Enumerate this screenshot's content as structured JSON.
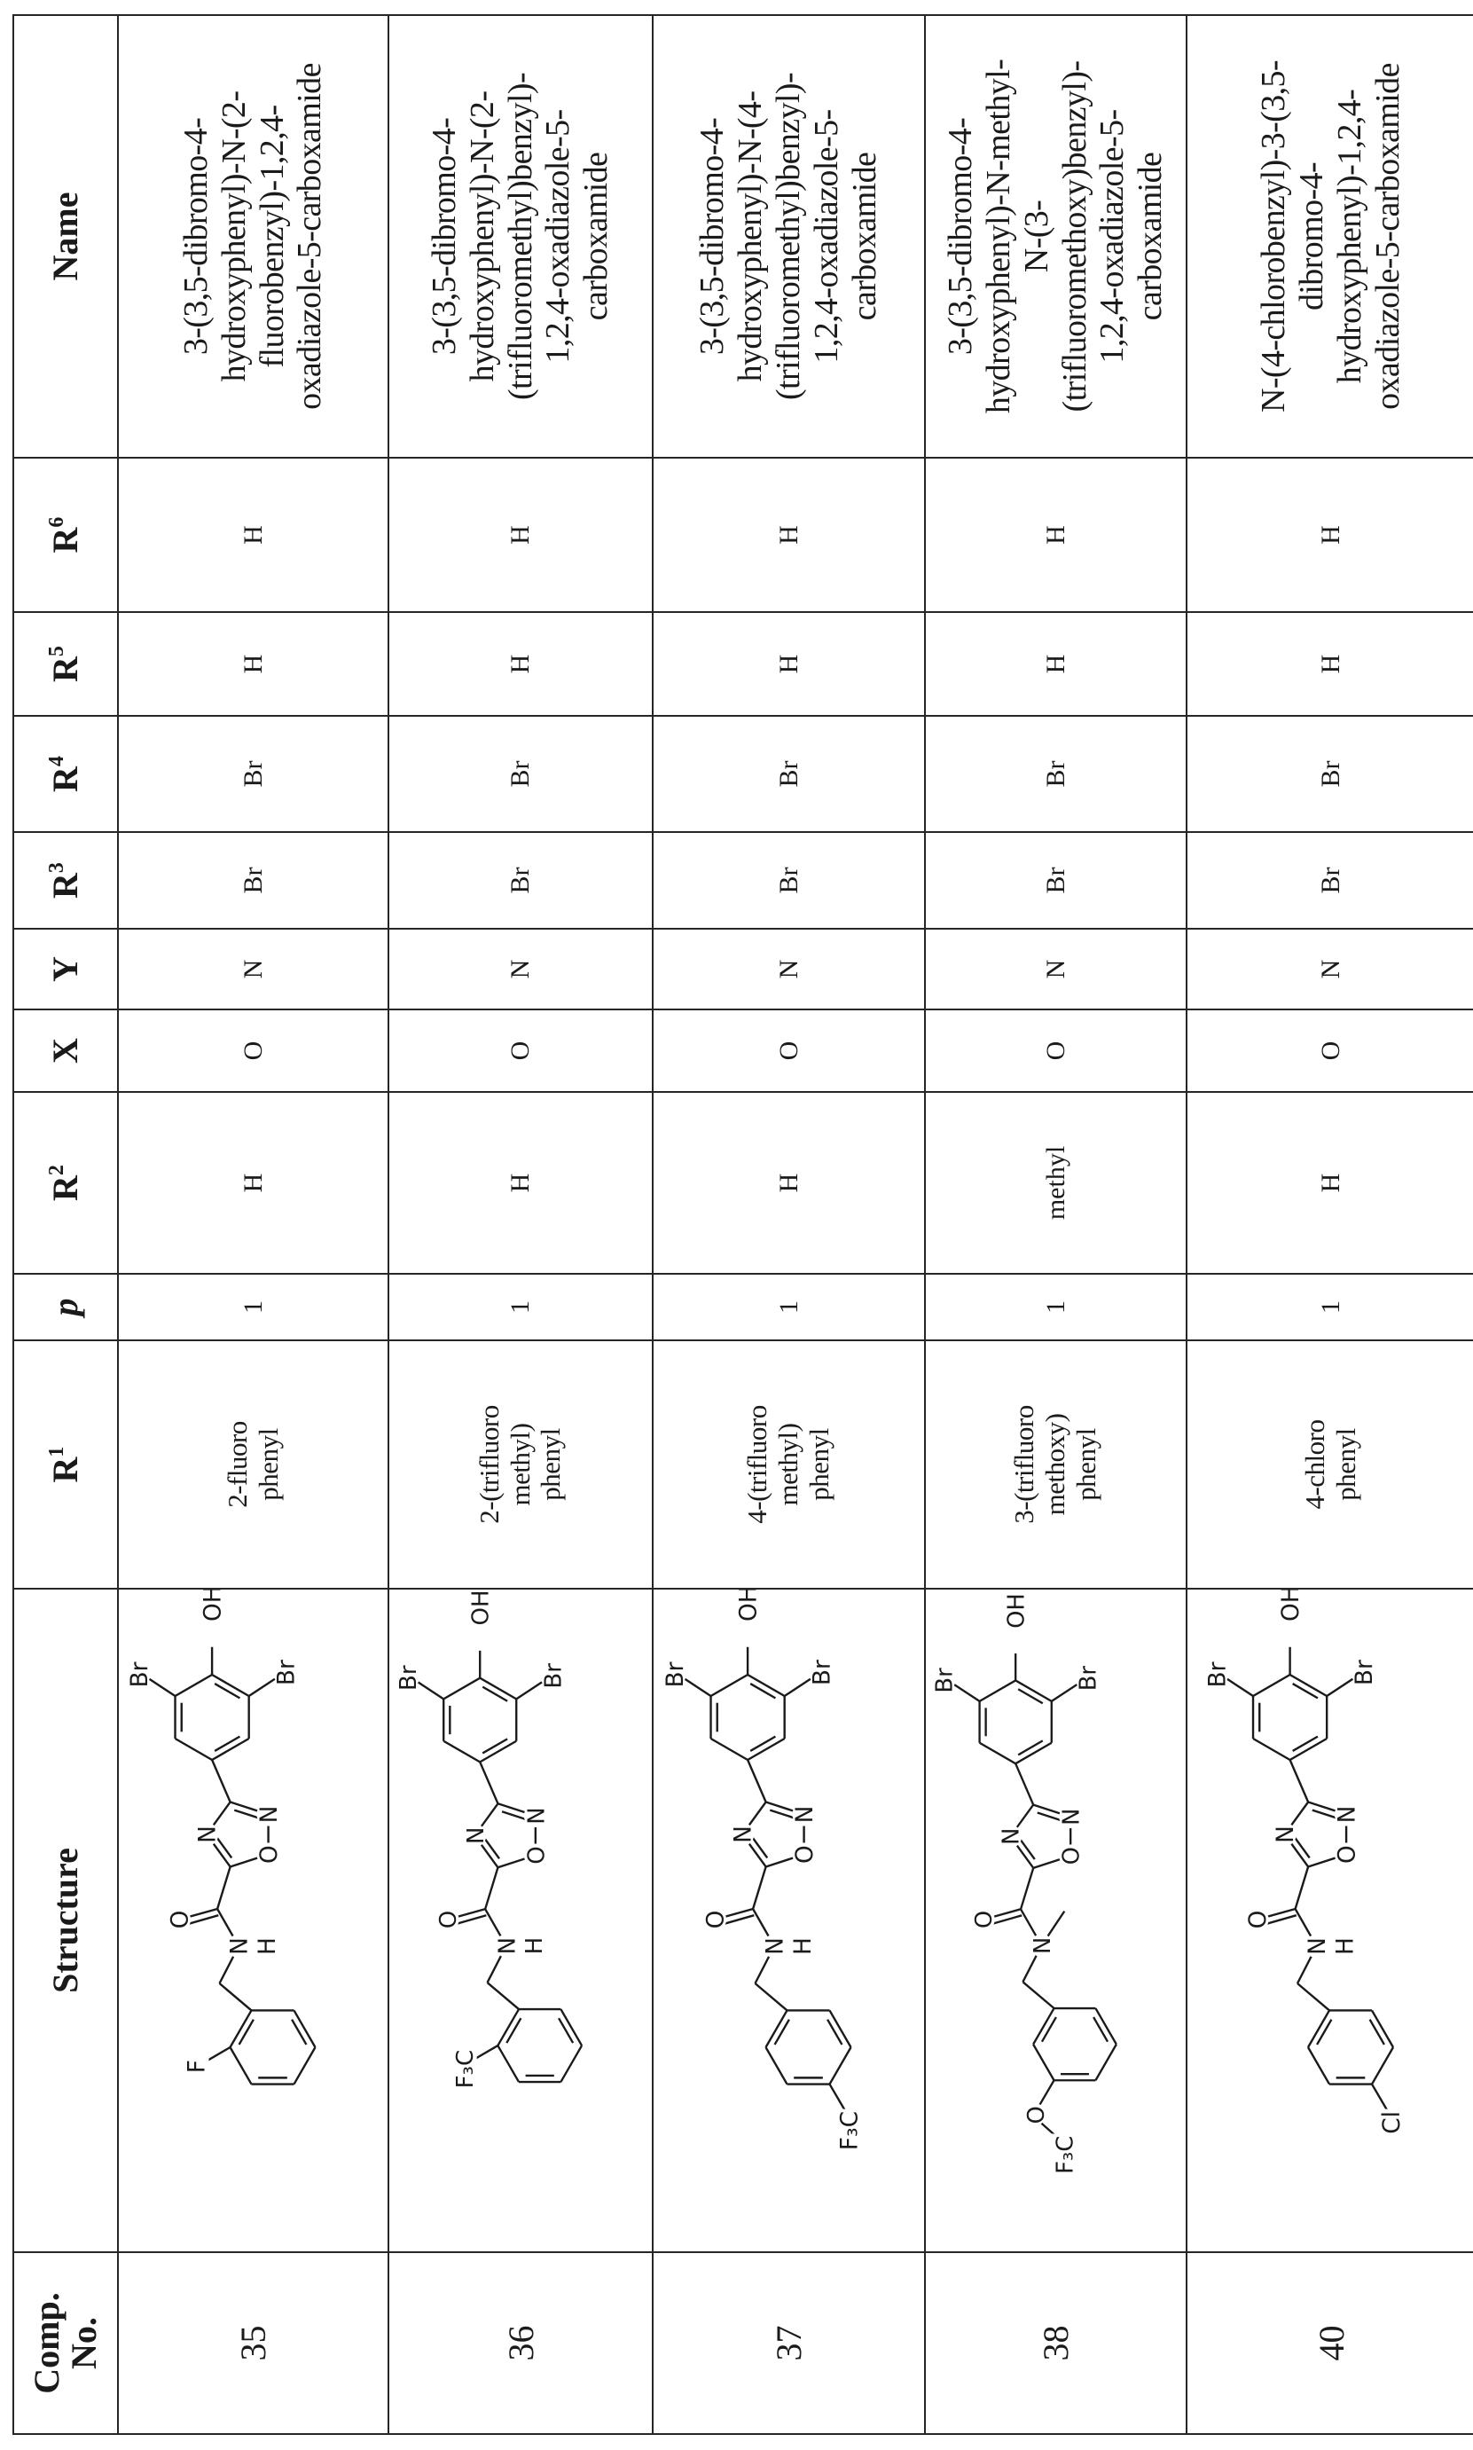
{
  "table": {
    "headers": [
      {
        "label": "Comp. No."
      },
      {
        "label": "Structure"
      },
      {
        "label": "R",
        "sup": "1"
      },
      {
        "label": "p"
      },
      {
        "label": "R",
        "sup": "2"
      },
      {
        "label": "X"
      },
      {
        "label": "Y"
      },
      {
        "label": "R",
        "sup": "3"
      },
      {
        "label": "R",
        "sup": "4"
      },
      {
        "label": "R",
        "sup": "5"
      },
      {
        "label": "R",
        "sup": "6"
      },
      {
        "label": "Name"
      }
    ],
    "rows": [
      {
        "comp_no": "35",
        "structure": {
          "br": "Br",
          "oh": "OH",
          "ring_n": "N",
          "ring_o": "O",
          "carbonyl_o": "O",
          "amide_n": "N",
          "amide_h": "H",
          "substituent": "F",
          "substituent_position": "ortho"
        },
        "r1": "2-fluoro\nphenyl",
        "p": "1",
        "r2": "H",
        "x": "O",
        "y": "N",
        "r3": "Br",
        "r4": "Br",
        "r5": "H",
        "r6": "H",
        "name": "3-(3,5-dibromo-4-\nhydroxyphenyl)-N-(2-\nfluorobenzyl)-1,2,4-\noxadiazole-5-carboxamide"
      },
      {
        "comp_no": "36",
        "structure": {
          "br": "Br",
          "oh": "OH",
          "ring_n": "N",
          "ring_o": "O",
          "carbonyl_o": "O",
          "amide_n": "N",
          "amide_h": "H",
          "substituent": "F₃C",
          "substituent_position": "ortho"
        },
        "r1": "2-(trifluoro\nmethyl)\nphenyl",
        "p": "1",
        "r2": "H",
        "x": "O",
        "y": "N",
        "r3": "Br",
        "r4": "Br",
        "r5": "H",
        "r6": "H",
        "name": "3-(3,5-dibromo-4-\nhydroxyphenyl)-N-(2-\n(trifluoromethyl)benzyl)-\n1,2,4-oxadiazole-5-\ncarboxamide"
      },
      {
        "comp_no": "37",
        "structure": {
          "br": "Br",
          "oh": "OH",
          "ring_n": "N",
          "ring_o": "O",
          "carbonyl_o": "O",
          "amide_n": "N",
          "amide_h": "H",
          "substituent": "F₃C",
          "substituent_position": "para"
        },
        "r1": "4-(trifluoro\nmethyl)\nphenyl",
        "p": "1",
        "r2": "H",
        "x": "O",
        "y": "N",
        "r3": "Br",
        "r4": "Br",
        "r5": "H",
        "r6": "H",
        "name": "3-(3,5-dibromo-4-\nhydroxyphenyl)-N-(4-\n(trifluoromethyl)benzyl)-\n1,2,4-oxadiazole-5-\ncarboxamide"
      },
      {
        "comp_no": "38",
        "structure": {
          "br": "Br",
          "oh": "OH",
          "ring_n": "N",
          "ring_o": "O",
          "carbonyl_o": "O",
          "amide_n": "N",
          "linker_o": "O",
          "substituent": "F₃C",
          "substituent_position": "meta"
        },
        "r1": "3-(trifluoro\nmethoxy)\nphenyl",
        "p": "1",
        "r2": "methyl",
        "x": "O",
        "y": "N",
        "r3": "Br",
        "r4": "Br",
        "r5": "H",
        "r6": "H",
        "name": "3-(3,5-dibromo-4-\nhydroxyphenyl)-N-methyl-\nN-(3-\n(trifluoromethoxy)benzyl)-\n1,2,4-oxadiazole-5-\ncarboxamide"
      },
      {
        "comp_no": "40",
        "structure": {
          "br": "Br",
          "oh": "OH",
          "ring_n": "N",
          "ring_o": "O",
          "carbonyl_o": "O",
          "amide_n": "N",
          "amide_h": "H",
          "substituent": "Cl",
          "substituent_position": "para"
        },
        "r1": "4-chloro\nphenyl",
        "p": "1",
        "r2": "H",
        "x": "O",
        "y": "N",
        "r3": "Br",
        "r4": "Br",
        "r5": "H",
        "r6": "H",
        "name": "N-(4-chlorobenzyl)-3-(3,5-\ndibromo-4-\nhydroxyphenyl)-1,2,4-\noxadiazole-5-carboxamide"
      }
    ]
  }
}
